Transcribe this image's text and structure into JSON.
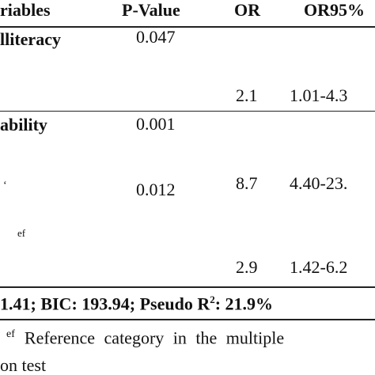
{
  "table": {
    "header": [
      "riables",
      "P-Value",
      "OR",
      "OR95%"
    ],
    "rows": [
      {
        "variable": "lliteracy",
        "p_value": "0.047",
        "or": "2.1",
        "ci": "1.01-4.3"
      },
      {
        "variable": "ability",
        "p_value": "0.001",
        "or": "8.7",
        "ci": "4.40-23."
      },
      {
        "variable": "‘",
        "ref": "ef",
        "p_value": "0.012",
        "or": "2.9",
        "ci": "1.42-6.2"
      }
    ],
    "footer": {
      "text": "1.41; BIC: 193.94; Pseudo R",
      "sup": "2",
      "tail": ": 21.9%"
    }
  },
  "note": {
    "sup": "ef",
    "line1": "Reference category in the multiple",
    "line2": "on test"
  }
}
